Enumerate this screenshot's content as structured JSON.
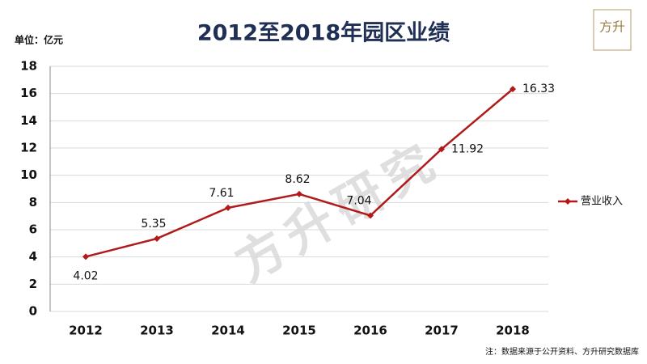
{
  "chart_data": {
    "type": "line",
    "title": "2012至2018年园区业绩",
    "unit_label": "单位：亿元",
    "categories": [
      "2012",
      "2013",
      "2014",
      "2015",
      "2016",
      "2017",
      "2018"
    ],
    "series": [
      {
        "name": "营业收入",
        "color": "#b11a1a",
        "values": [
          4.02,
          5.35,
          7.61,
          8.62,
          7.04,
          11.92,
          16.33
        ]
      }
    ],
    "ylim": [
      0,
      18
    ],
    "yticks": [
      0,
      2,
      4,
      6,
      8,
      10,
      12,
      14,
      16,
      18
    ],
    "grid": true,
    "legend": "right",
    "data_labels": true,
    "note": "注：数据来源于公开资料、方升研究数据库",
    "watermark": "方升研究",
    "logo": "方升"
  }
}
